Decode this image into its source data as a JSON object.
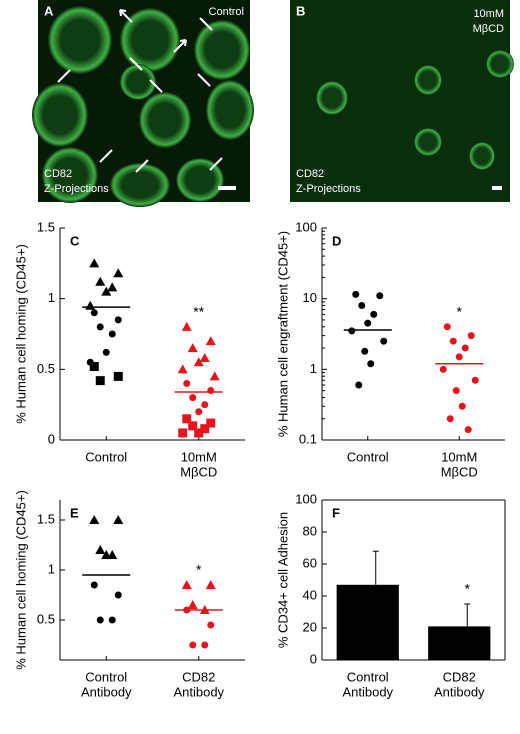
{
  "images": [
    {
      "letter": "A",
      "label": [
        "Control"
      ],
      "caption": [
        "CD82",
        "Z-Projections"
      ]
    },
    {
      "letter": "B",
      "label": [
        "10mM",
        "MβCD"
      ],
      "caption": [
        "CD82",
        "Z-Projections"
      ]
    }
  ],
  "chart_data": [
    {
      "type": "scatter",
      "title": "C",
      "ylabel": "% Human cell homing (CD45+)",
      "categories": [
        [
          "Control"
        ],
        [
          "10mM",
          "MβCD"
        ]
      ],
      "ylim": [
        0,
        1.5
      ],
      "yticks": [
        0,
        0.5,
        1,
        1.5
      ],
      "log": false,
      "annotation": "**",
      "groups": [
        {
          "color": "#000000",
          "triangle": [
            1.25,
            1.18,
            1.12,
            1.08,
            1.05,
            0.95
          ],
          "circle": [
            0.9,
            0.85,
            0.8,
            0.75,
            0.62,
            0.55
          ],
          "square": [
            0.52,
            0.45,
            0.42
          ],
          "mean": 0.94
        },
        {
          "color": "#e8141c",
          "triangle": [
            0.8,
            0.7,
            0.65,
            0.58,
            0.55,
            0.5,
            0.45
          ],
          "circle": [
            0.4,
            0.35,
            0.3,
            0.25,
            0.2
          ],
          "square": [
            0.15,
            0.12,
            0.1,
            0.08,
            0.05,
            0.05
          ],
          "mean": 0.34
        }
      ]
    },
    {
      "type": "scatter",
      "title": "D",
      "ylabel": "% Human cell engraftment (CD45+)",
      "categories": [
        [
          "Control"
        ],
        [
          "10mM",
          "MβCD"
        ]
      ],
      "ylim": [
        0.1,
        100
      ],
      "yticks": [
        0.1,
        1,
        10,
        100
      ],
      "log": true,
      "annotation": "*",
      "groups": [
        {
          "color": "#000000",
          "circle": [
            11.5,
            11,
            8,
            6,
            4.5,
            3.5,
            2.5,
            1.8,
            1.2,
            0.6
          ],
          "mean": 3.6
        },
        {
          "color": "#e8141c",
          "circle": [
            4,
            3,
            2.5,
            2,
            1.5,
            1,
            0.7,
            0.5,
            0.3,
            0.2,
            0.14
          ],
          "mean": 1.2
        }
      ]
    },
    {
      "type": "scatter",
      "title": "E",
      "ylabel": "% Human cell homing (CD45+)",
      "categories": [
        [
          "Control",
          "Antibody"
        ],
        [
          "CD82",
          "Antibody"
        ]
      ],
      "ylim": [
        0.1,
        1.7
      ],
      "yticks": [
        0.5,
        1,
        1.5
      ],
      "log": false,
      "annotation": "*",
      "groups": [
        {
          "color": "#000000",
          "triangle": [
            1.5,
            1.5,
            1.2,
            1.15,
            1.15
          ],
          "circle": [
            0.85,
            0.75,
            0.5,
            0.5
          ],
          "mean": 0.95
        },
        {
          "color": "#e8141c",
          "triangle": [
            0.85,
            0.85,
            0.65,
            0.6
          ],
          "circle": [
            0.6,
            0.45,
            0.25,
            0.25
          ],
          "mean": 0.6
        }
      ]
    },
    {
      "type": "bar",
      "title": "F",
      "ylabel": "% CD34+ cell Adhesion",
      "categories": [
        [
          "Control",
          "Antibody"
        ],
        [
          "CD82",
          "Antibody"
        ]
      ],
      "ylim": [
        0,
        100
      ],
      "yticks": [
        0,
        20,
        40,
        60,
        80,
        100
      ],
      "log": false,
      "annotation": "*",
      "color": "#000000",
      "values": [
        47,
        21
      ],
      "errors": [
        21,
        14
      ]
    }
  ]
}
